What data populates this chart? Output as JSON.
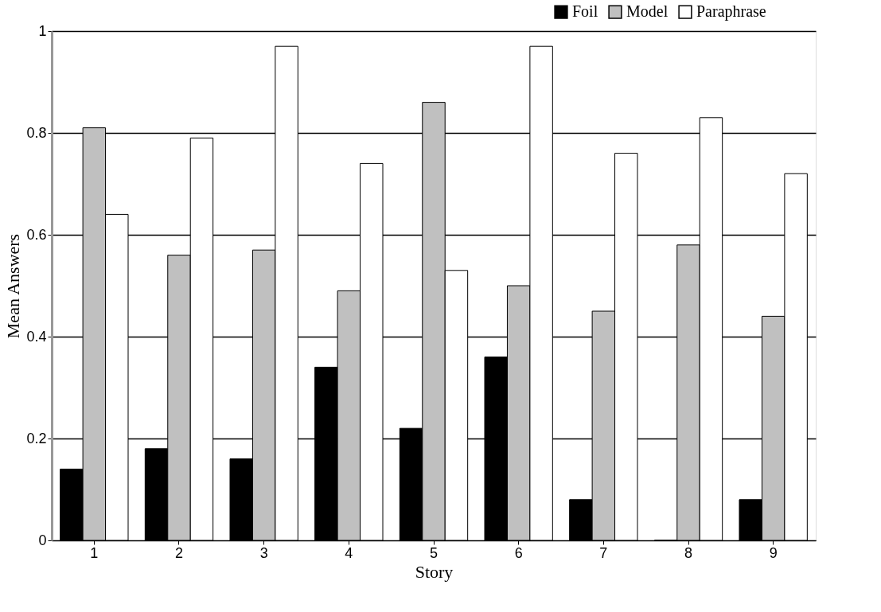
{
  "chart_data": {
    "type": "bar",
    "xlabel": "Story",
    "ylabel": "Mean Answers",
    "categories": [
      "1",
      "2",
      "3",
      "4",
      "5",
      "6",
      "7",
      "8",
      "9"
    ],
    "series": [
      {
        "name": "Foil",
        "color": "#000000",
        "values": [
          0.14,
          0.18,
          0.16,
          0.34,
          0.22,
          0.36,
          0.08,
          0,
          0.08
        ]
      },
      {
        "name": "Model",
        "color": "#c0c0c0",
        "values": [
          0.81,
          0.56,
          0.57,
          0.49,
          0.86,
          0.5,
          0.45,
          0.58,
          0.44
        ]
      },
      {
        "name": "Paraphrase",
        "color": "#ffffff",
        "values": [
          0.64,
          0.79,
          0.97,
          0.74,
          0.53,
          0.97,
          0.76,
          0.83,
          0.72
        ]
      }
    ],
    "ylim": [
      0,
      1
    ],
    "yticks": [
      0,
      0.2,
      0.4,
      0.6,
      0.8,
      1
    ],
    "grid": "y",
    "legend": "top right"
  }
}
